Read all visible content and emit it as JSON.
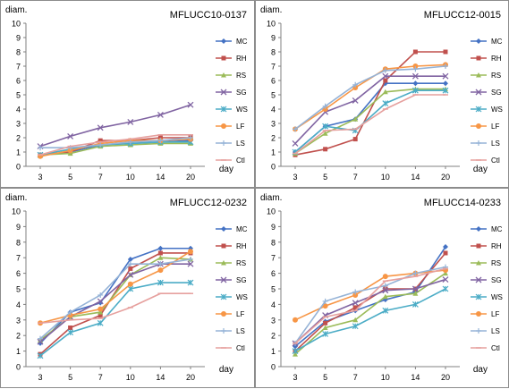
{
  "chart_data": [
    {
      "type": "line",
      "title": "MFLUCC10-0137",
      "ylabel": "diam.",
      "xlabel": "day",
      "categories": [
        "3",
        "5",
        "7",
        "10",
        "14",
        "20"
      ],
      "ylim": [
        0,
        10
      ],
      "legend_position": "right",
      "series": [
        {
          "name": "MC",
          "values": [
            0.8,
            1.0,
            1.5,
            1.6,
            1.7,
            1.8
          ]
        },
        {
          "name": "RH",
          "values": [
            0.8,
            1.0,
            1.8,
            1.8,
            2.0,
            2.0
          ]
        },
        {
          "name": "RS",
          "values": [
            0.8,
            0.9,
            1.4,
            1.5,
            1.6,
            1.6
          ]
        },
        {
          "name": "SG",
          "values": [
            1.4,
            2.1,
            2.7,
            3.1,
            3.6,
            4.3
          ]
        },
        {
          "name": "WS",
          "values": [
            0.8,
            1.2,
            1.5,
            1.6,
            1.7,
            1.7
          ]
        },
        {
          "name": "LF",
          "values": [
            0.7,
            1.1,
            1.6,
            1.8,
            1.8,
            1.9
          ]
        },
        {
          "name": "LS",
          "values": [
            1.3,
            1.3,
            1.5,
            1.7,
            1.8,
            2.0
          ]
        },
        {
          "name": "Ctl",
          "values": [
            0.8,
            1.4,
            1.7,
            1.9,
            2.2,
            2.2
          ]
        }
      ]
    },
    {
      "type": "line",
      "title": "MFLUCC12-0015",
      "ylabel": "diam.",
      "xlabel": "day",
      "categories": [
        "3",
        "5",
        "7",
        "10",
        "14",
        "20"
      ],
      "ylim": [
        0,
        10
      ],
      "legend_position": "right",
      "series": [
        {
          "name": "MC",
          "values": [
            1.0,
            2.8,
            3.3,
            5.8,
            5.8,
            5.8
          ]
        },
        {
          "name": "RH",
          "values": [
            0.8,
            1.2,
            1.9,
            6.0,
            8.0,
            8.0
          ]
        },
        {
          "name": "RS",
          "values": [
            0.9,
            2.3,
            3.3,
            5.2,
            5.4,
            5.4
          ]
        },
        {
          "name": "SG",
          "values": [
            1.6,
            3.8,
            4.6,
            6.3,
            6.3,
            6.3
          ]
        },
        {
          "name": "WS",
          "values": [
            1.0,
            2.8,
            2.5,
            4.4,
            5.3,
            5.3
          ]
        },
        {
          "name": "LF",
          "values": [
            2.6,
            4.0,
            5.5,
            6.8,
            7.0,
            7.1
          ]
        },
        {
          "name": "LS",
          "values": [
            2.6,
            4.2,
            5.7,
            6.7,
            6.8,
            7.0
          ]
        },
        {
          "name": "Ctl",
          "values": [
            0.9,
            2.5,
            2.6,
            4.0,
            5.0,
            5.0
          ]
        }
      ]
    },
    {
      "type": "line",
      "title": "MFLUCC12-0232",
      "ylabel": "diam.",
      "xlabel": "day",
      "categories": [
        "3",
        "5",
        "7",
        "10",
        "14",
        "20"
      ],
      "ylim": [
        0,
        10
      ],
      "legend_position": "right",
      "series": [
        {
          "name": "MC",
          "values": [
            1.5,
            3.5,
            4.1,
            6.9,
            7.6,
            7.6
          ]
        },
        {
          "name": "RH",
          "values": [
            0.8,
            2.5,
            3.3,
            6.3,
            7.3,
            7.3
          ]
        },
        {
          "name": "RS",
          "values": [
            1.7,
            3.2,
            3.5,
            5.9,
            7.0,
            6.9
          ]
        },
        {
          "name": "SG",
          "values": [
            1.6,
            3.2,
            4.2,
            5.9,
            6.6,
            6.6
          ]
        },
        {
          "name": "WS",
          "values": [
            0.7,
            2.2,
            2.8,
            5.0,
            5.4,
            5.4
          ]
        },
        {
          "name": "LF",
          "values": [
            2.8,
            3.3,
            3.7,
            5.3,
            6.2,
            7.4
          ]
        },
        {
          "name": "LS",
          "values": [
            1.8,
            3.5,
            4.6,
            6.6,
            6.6,
            6.9
          ]
        },
        {
          "name": "Ctl",
          "values": [
            2.8,
            3.0,
            3.1,
            3.8,
            4.7,
            4.7
          ]
        }
      ]
    },
    {
      "type": "line",
      "title": "MFLUCC14-0233",
      "ylabel": "diam.",
      "xlabel": "day",
      "categories": [
        "3",
        "5",
        "7",
        "10",
        "14",
        "20"
      ],
      "ylim": [
        0,
        10
      ],
      "legend_position": "right",
      "series": [
        {
          "name": "MC",
          "values": [
            1.3,
            2.9,
            3.6,
            4.3,
            4.8,
            7.7
          ]
        },
        {
          "name": "RH",
          "values": [
            1.0,
            2.8,
            3.8,
            5.0,
            5.0,
            7.3
          ]
        },
        {
          "name": "RS",
          "values": [
            0.8,
            2.5,
            3.0,
            4.5,
            4.7,
            6.0
          ]
        },
        {
          "name": "SG",
          "values": [
            1.5,
            3.3,
            4.1,
            4.9,
            5.0,
            5.6
          ]
        },
        {
          "name": "WS",
          "values": [
            1.0,
            2.1,
            2.6,
            3.6,
            4.0,
            5.0
          ]
        },
        {
          "name": "LF",
          "values": [
            3.0,
            3.9,
            4.6,
            5.8,
            6.0,
            6.2
          ]
        },
        {
          "name": "LS",
          "values": [
            1.5,
            4.2,
            4.8,
            5.2,
            6.0,
            6.4
          ]
        },
        {
          "name": "Ctl",
          "values": [
            1.5,
            3.2,
            3.6,
            5.5,
            5.8,
            6.3
          ]
        }
      ]
    }
  ],
  "style": {
    "series_colors": {
      "MC": "#4472c4",
      "RH": "#c0504d",
      "RS": "#9bbb59",
      "SG": "#8064a2",
      "WS": "#4bacc6",
      "LF": "#f79646",
      "LS": "#95b3d7",
      "Ctl": "#e6a09e"
    },
    "series_markers": {
      "MC": "diamond",
      "RH": "square",
      "RS": "triangle",
      "SG": "x",
      "WS": "star",
      "LF": "circle",
      "LS": "plus",
      "Ctl": "dash"
    }
  }
}
